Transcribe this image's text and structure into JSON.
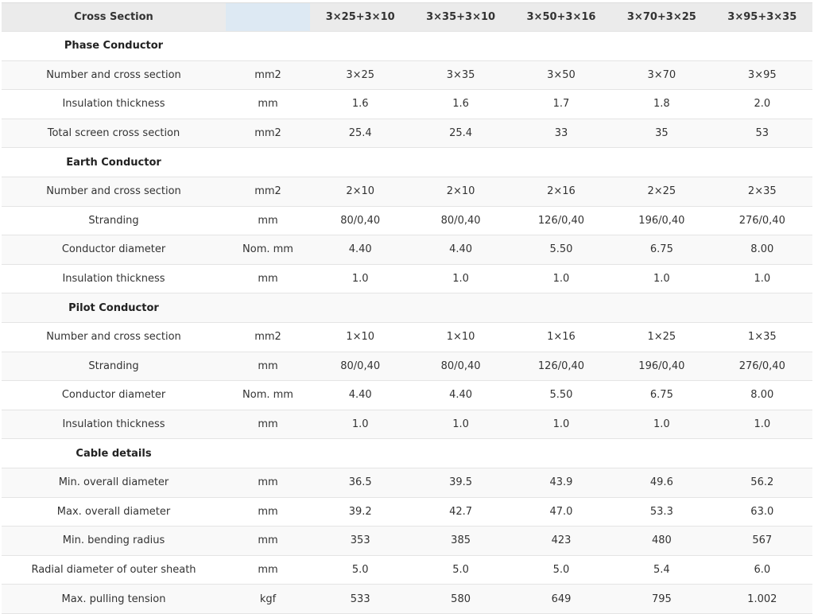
{
  "header": {
    "label": "Cross Section",
    "unit": "",
    "columns": [
      "3×25+3×10",
      "3×35+3×10",
      "3×50+3×16",
      "3×70+3×25",
      "3×95+3×35"
    ]
  },
  "rows": [
    {
      "type": "section",
      "label": "Phase Conductor"
    },
    {
      "type": "data",
      "label": "Number and cross section",
      "unit": "mm2",
      "values": [
        "3×25",
        "3×35",
        "3×50",
        "3×70",
        "3×95"
      ]
    },
    {
      "type": "data",
      "label": "Insulation thickness",
      "unit": "mm",
      "values": [
        "1.6",
        "1.6",
        "1.7",
        "1.8",
        "2.0"
      ]
    },
    {
      "type": "data",
      "label": "Total screen cross section",
      "unit": "mm2",
      "values": [
        "25.4",
        "25.4",
        "33",
        "35",
        "53"
      ]
    },
    {
      "type": "section",
      "label": "Earth Conductor"
    },
    {
      "type": "data",
      "label": "Number and cross section",
      "unit": "mm2",
      "values": [
        "2×10",
        "2×10",
        "2×16",
        "2×25",
        "2×35"
      ]
    },
    {
      "type": "data",
      "label": "Stranding",
      "unit": "mm",
      "values": [
        "80/0,40",
        "80/0,40",
        "126/0,40",
        "196/0,40",
        "276/0,40"
      ]
    },
    {
      "type": "data",
      "label": "Conductor diameter",
      "unit": "Nom. mm",
      "values": [
        "4.40",
        "4.40",
        "5.50",
        "6.75",
        "8.00"
      ]
    },
    {
      "type": "data",
      "label": "Insulation thickness",
      "unit": "mm",
      "values": [
        "1.0",
        "1.0",
        "1.0",
        "1.0",
        "1.0"
      ]
    },
    {
      "type": "section",
      "label": "Pilot Conductor"
    },
    {
      "type": "data",
      "label": "Number and cross section",
      "unit": "mm2",
      "values": [
        "1×10",
        "1×10",
        "1×16",
        "1×25",
        "1×35"
      ]
    },
    {
      "type": "data",
      "label": "Stranding",
      "unit": "mm",
      "values": [
        "80/0,40",
        "80/0,40",
        "126/0,40",
        "196/0,40",
        "276/0,40"
      ]
    },
    {
      "type": "data",
      "label": "Conductor diameter",
      "unit": "Nom. mm",
      "values": [
        "4.40",
        "4.40",
        "5.50",
        "6.75",
        "8.00"
      ]
    },
    {
      "type": "data",
      "label": "Insulation thickness",
      "unit": "mm",
      "values": [
        "1.0",
        "1.0",
        "1.0",
        "1.0",
        "1.0"
      ]
    },
    {
      "type": "section",
      "label": "Cable details"
    },
    {
      "type": "data",
      "label": "Min. overall diameter",
      "unit": "mm",
      "values": [
        "36.5",
        "39.5",
        "43.9",
        "49.6",
        "56.2"
      ]
    },
    {
      "type": "data",
      "label": "Max. overall diameter",
      "unit": "mm",
      "values": [
        "39.2",
        "42.7",
        "47.0",
        "53.3",
        "63.0"
      ]
    },
    {
      "type": "data",
      "label": "Min. bending radius",
      "unit": "mm",
      "values": [
        "353",
        "385",
        "423",
        "480",
        "567"
      ]
    },
    {
      "type": "data",
      "label": "Radial diameter of outer sheath",
      "unit": "mm",
      "values": [
        "5.0",
        "5.0",
        "5.0",
        "5.4",
        "6.0"
      ]
    },
    {
      "type": "data",
      "label": "Max. pulling tension",
      "unit": "kgf",
      "values": [
        "533",
        "580",
        "649",
        "795",
        "1.002"
      ]
    }
  ]
}
